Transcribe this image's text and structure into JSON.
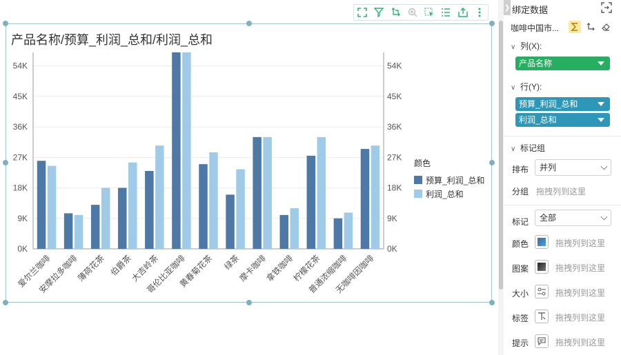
{
  "chart_data": {
    "type": "bar",
    "title": "产品名称/预算_利润_总和/利润_总和",
    "categories": [
      "爱尔兰咖啡",
      "安摩拉多咖啡",
      "薄荷花茶",
      "伯爵茶",
      "大吉岭茶",
      "哥伦比亚咖啡",
      "黄春菊花茶",
      "绿茶",
      "摩卡咖啡",
      "拿铁咖啡",
      "柠檬花茶",
      "普通浓缩咖啡",
      "无咖啡因咖啡"
    ],
    "series": [
      {
        "name": "预算_利润_总和",
        "color": "#4e79a7",
        "values": [
          26000,
          10500,
          13000,
          18000,
          23000,
          58000,
          25000,
          16000,
          33000,
          10000,
          27500,
          9000,
          29500
        ]
      },
      {
        "name": "利润_总和",
        "color": "#a0cbe8",
        "values": [
          24500,
          10000,
          18000,
          25500,
          30500,
          58000,
          28500,
          23500,
          33000,
          12000,
          33000,
          10700,
          30500
        ]
      }
    ],
    "yticks": [
      "0K",
      "9K",
      "18K",
      "27K",
      "36K",
      "45K",
      "54K"
    ],
    "ylim": [
      0,
      58000
    ],
    "legend_title": "颜色",
    "legend_placement": "right"
  },
  "panel": {
    "title": "绑定数据",
    "dataset": "咖啡中国市...",
    "columns_label": "列(X):",
    "rows_label": "行(Y):",
    "x_field": "产品名称",
    "y_fields": [
      "预算_利润_总和",
      "利润_总和"
    ],
    "marks_group_label": "标记组",
    "layout_label": "排布",
    "layout_value": "并列",
    "group_label": "分组",
    "drag_here": "拖拽列到这里",
    "mark_label": "标记",
    "mark_value": "全部",
    "color_label": "颜色",
    "pattern_label": "图案",
    "size_label": "大小",
    "tag_label": "标签",
    "tooltip_label": "提示"
  },
  "colors": {
    "x_pill": "#27ae60",
    "y_pill": "#2e97b7",
    "frame": "#9fc3cc",
    "toolbar_icon": "#2bb673"
  }
}
